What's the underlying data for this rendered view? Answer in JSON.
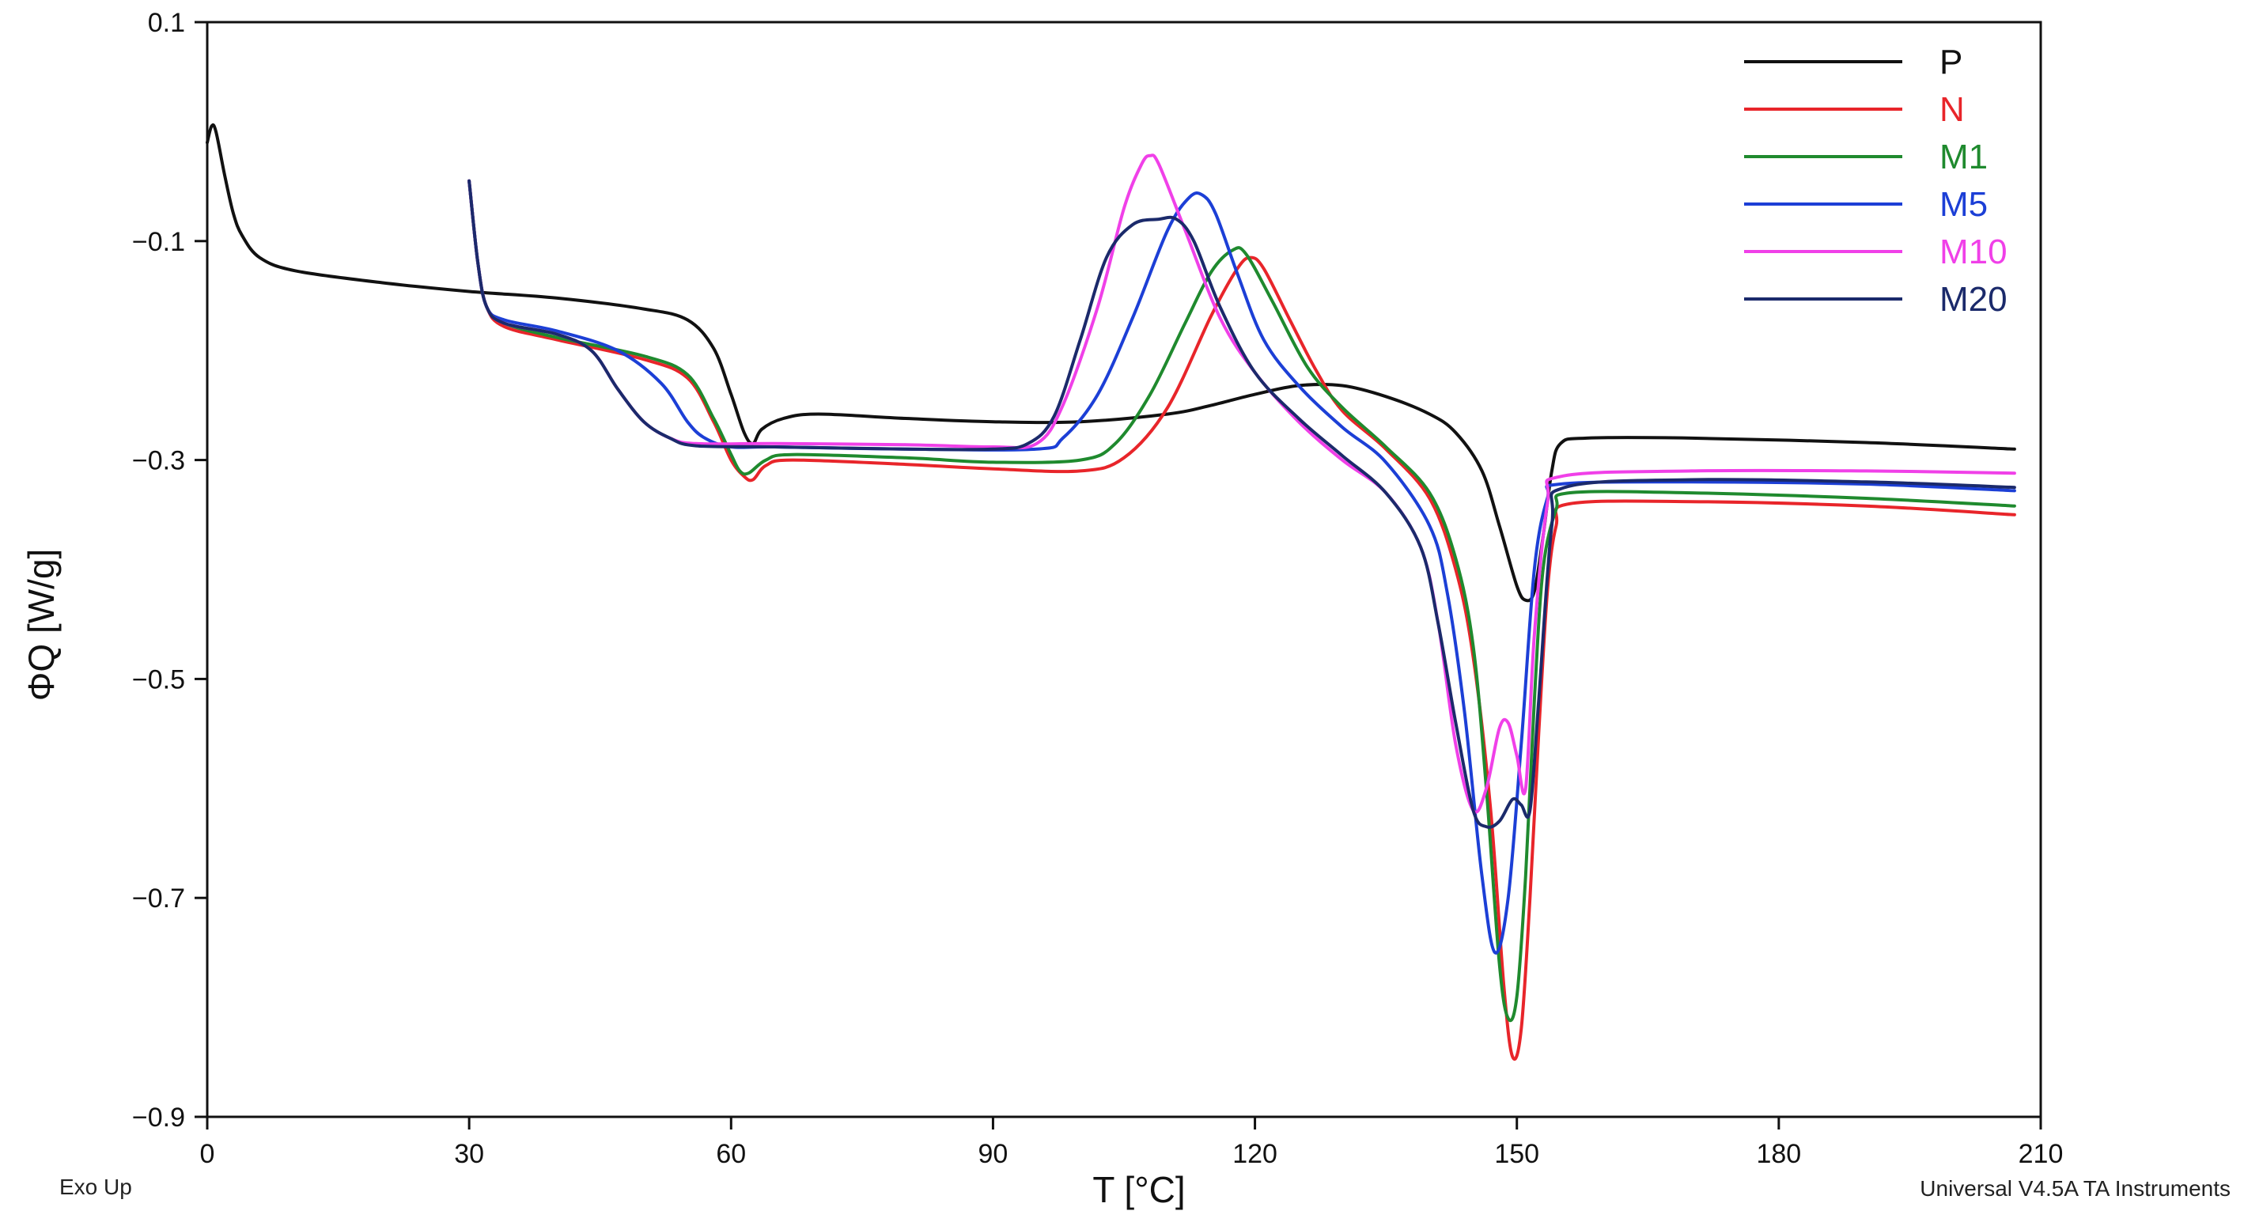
{
  "chart_data": {
    "type": "line",
    "title": "",
    "xlabel": "T [°C]",
    "ylabel": "ΦQ [W/g]",
    "xlim": [
      0,
      210
    ],
    "ylim": [
      -0.9,
      0.1
    ],
    "x_ticks": [
      0,
      30,
      60,
      90,
      120,
      150,
      180,
      210
    ],
    "y_ticks": [
      0.1,
      -0.1,
      -0.3,
      -0.5,
      -0.7,
      -0.9
    ],
    "y_tick_labels": [
      "0.1",
      "−0.1",
      "−0.3",
      "−0.5",
      "−0.7",
      "−0.9"
    ],
    "grid": false,
    "legend_position": "top-right",
    "corner_left_note": "Exo Up",
    "corner_right_note": "Universal V4.5A TA Instruments",
    "series": [
      {
        "name": "P",
        "color": "#111111",
        "points": [
          [
            0,
            -0.01
          ],
          [
            0.5,
            0.005
          ],
          [
            1,
            0.0
          ],
          [
            2,
            -0.04
          ],
          [
            3,
            -0.075
          ],
          [
            4,
            -0.095
          ],
          [
            6,
            -0.115
          ],
          [
            10,
            -0.127
          ],
          [
            20,
            -0.138
          ],
          [
            30,
            -0.146
          ],
          [
            40,
            -0.152
          ],
          [
            50,
            -0.162
          ],
          [
            55,
            -0.172
          ],
          [
            58,
            -0.198
          ],
          [
            60,
            -0.24
          ],
          [
            61.5,
            -0.275
          ],
          [
            62.5,
            -0.285
          ],
          [
            63.5,
            -0.272
          ],
          [
            66,
            -0.262
          ],
          [
            70,
            -0.258
          ],
          [
            80,
            -0.262
          ],
          [
            90,
            -0.265
          ],
          [
            100,
            -0.265
          ],
          [
            110,
            -0.258
          ],
          [
            115,
            -0.25
          ],
          [
            120,
            -0.24
          ],
          [
            125,
            -0.232
          ],
          [
            130,
            -0.232
          ],
          [
            135,
            -0.242
          ],
          [
            140,
            -0.258
          ],
          [
            143,
            -0.275
          ],
          [
            146,
            -0.31
          ],
          [
            148,
            -0.36
          ],
          [
            150,
            -0.415
          ],
          [
            151,
            -0.428
          ],
          [
            152,
            -0.42
          ],
          [
            153,
            -0.37
          ],
          [
            154,
            -0.31
          ],
          [
            155,
            -0.285
          ],
          [
            158,
            -0.28
          ],
          [
            170,
            -0.28
          ],
          [
            190,
            -0.284
          ],
          [
            207,
            -0.29
          ]
        ]
      },
      {
        "name": "N",
        "color": "#e8252a",
        "points": [
          [
            30,
            -0.045
          ],
          [
            31,
            -0.12
          ],
          [
            32,
            -0.16
          ],
          [
            34,
            -0.178
          ],
          [
            40,
            -0.19
          ],
          [
            50,
            -0.208
          ],
          [
            55,
            -0.225
          ],
          [
            58,
            -0.265
          ],
          [
            60,
            -0.3
          ],
          [
            61.5,
            -0.315
          ],
          [
            62.5,
            -0.318
          ],
          [
            64,
            -0.305
          ],
          [
            67,
            -0.3
          ],
          [
            80,
            -0.304
          ],
          [
            90,
            -0.308
          ],
          [
            100,
            -0.31
          ],
          [
            105,
            -0.298
          ],
          [
            110,
            -0.252
          ],
          [
            115,
            -0.168
          ],
          [
            118,
            -0.125
          ],
          [
            119.5,
            -0.115
          ],
          [
            121,
            -0.125
          ],
          [
            124,
            -0.172
          ],
          [
            127,
            -0.218
          ],
          [
            130,
            -0.255
          ],
          [
            135,
            -0.29
          ],
          [
            140,
            -0.335
          ],
          [
            143,
            -0.4
          ],
          [
            145,
            -0.48
          ],
          [
            147,
            -0.62
          ],
          [
            148.5,
            -0.78
          ],
          [
            149.5,
            -0.845
          ],
          [
            150.5,
            -0.82
          ],
          [
            151.5,
            -0.7
          ],
          [
            152.5,
            -0.55
          ],
          [
            153.5,
            -0.42
          ],
          [
            154.5,
            -0.36
          ],
          [
            156,
            -0.34
          ],
          [
            170,
            -0.338
          ],
          [
            190,
            -0.342
          ],
          [
            207,
            -0.35
          ]
        ]
      },
      {
        "name": "M1",
        "color": "#1f8a2e",
        "points": [
          [
            30,
            -0.045
          ],
          [
            31,
            -0.12
          ],
          [
            32,
            -0.16
          ],
          [
            34,
            -0.175
          ],
          [
            40,
            -0.188
          ],
          [
            50,
            -0.205
          ],
          [
            55,
            -0.222
          ],
          [
            58,
            -0.262
          ],
          [
            60,
            -0.295
          ],
          [
            61,
            -0.31
          ],
          [
            62,
            -0.312
          ],
          [
            64,
            -0.3
          ],
          [
            67,
            -0.295
          ],
          [
            80,
            -0.298
          ],
          [
            90,
            -0.302
          ],
          [
            100,
            -0.3
          ],
          [
            104,
            -0.285
          ],
          [
            108,
            -0.24
          ],
          [
            112,
            -0.175
          ],
          [
            115,
            -0.128
          ],
          [
            117.5,
            -0.108
          ],
          [
            119,
            -0.112
          ],
          [
            122,
            -0.155
          ],
          [
            126,
            -0.215
          ],
          [
            130,
            -0.252
          ],
          [
            135,
            -0.288
          ],
          [
            140,
            -0.33
          ],
          [
            143,
            -0.39
          ],
          [
            145,
            -0.47
          ],
          [
            146.5,
            -0.6
          ],
          [
            148,
            -0.76
          ],
          [
            149,
            -0.81
          ],
          [
            150,
            -0.79
          ],
          [
            151,
            -0.68
          ],
          [
            152,
            -0.52
          ],
          [
            153,
            -0.4
          ],
          [
            154.5,
            -0.345
          ],
          [
            156,
            -0.33
          ],
          [
            170,
            -0.33
          ],
          [
            190,
            -0.335
          ],
          [
            207,
            -0.342
          ]
        ]
      },
      {
        "name": "M5",
        "color": "#1c3fd6",
        "points": [
          [
            30,
            -0.045
          ],
          [
            31,
            -0.12
          ],
          [
            32,
            -0.16
          ],
          [
            34,
            -0.172
          ],
          [
            40,
            -0.182
          ],
          [
            47,
            -0.2
          ],
          [
            52,
            -0.23
          ],
          [
            55,
            -0.265
          ],
          [
            57,
            -0.28
          ],
          [
            60,
            -0.288
          ],
          [
            65,
            -0.288
          ],
          [
            80,
            -0.29
          ],
          [
            95,
            -0.29
          ],
          [
            98,
            -0.28
          ],
          [
            102,
            -0.24
          ],
          [
            106,
            -0.17
          ],
          [
            110,
            -0.09
          ],
          [
            112.5,
            -0.06
          ],
          [
            114,
            -0.058
          ],
          [
            115.5,
            -0.075
          ],
          [
            118,
            -0.13
          ],
          [
            121,
            -0.19
          ],
          [
            125,
            -0.232
          ],
          [
            130,
            -0.27
          ],
          [
            135,
            -0.302
          ],
          [
            140,
            -0.36
          ],
          [
            142,
            -0.42
          ],
          [
            144,
            -0.53
          ],
          [
            146,
            -0.68
          ],
          [
            147.5,
            -0.75
          ],
          [
            149,
            -0.7
          ],
          [
            150.5,
            -0.56
          ],
          [
            152,
            -0.4
          ],
          [
            153.5,
            -0.335
          ],
          [
            155,
            -0.322
          ],
          [
            170,
            -0.32
          ],
          [
            190,
            -0.322
          ],
          [
            207,
            -0.328
          ]
        ]
      },
      {
        "name": "M10",
        "color": "#f040e8",
        "points": [
          [
            30,
            -0.045
          ],
          [
            31,
            -0.12
          ],
          [
            32,
            -0.16
          ],
          [
            34,
            -0.175
          ],
          [
            40,
            -0.185
          ],
          [
            44,
            -0.2
          ],
          [
            47,
            -0.235
          ],
          [
            50,
            -0.265
          ],
          [
            53,
            -0.28
          ],
          [
            56,
            -0.285
          ],
          [
            65,
            -0.285
          ],
          [
            80,
            -0.286
          ],
          [
            90,
            -0.288
          ],
          [
            95,
            -0.285
          ],
          [
            98,
            -0.25
          ],
          [
            102,
            -0.16
          ],
          [
            105,
            -0.07
          ],
          [
            107,
            -0.03
          ],
          [
            108,
            -0.022
          ],
          [
            109,
            -0.03
          ],
          [
            112,
            -0.09
          ],
          [
            116,
            -0.17
          ],
          [
            120,
            -0.22
          ],
          [
            125,
            -0.265
          ],
          [
            130,
            -0.3
          ],
          [
            135,
            -0.33
          ],
          [
            139,
            -0.38
          ],
          [
            141,
            -0.45
          ],
          [
            143,
            -0.56
          ],
          [
            145,
            -0.62
          ],
          [
            146.5,
            -0.6
          ],
          [
            148,
            -0.545
          ],
          [
            149,
            -0.54
          ],
          [
            150,
            -0.57
          ],
          [
            151,
            -0.6
          ],
          [
            152,
            -0.46
          ],
          [
            153.5,
            -0.34
          ],
          [
            155,
            -0.315
          ],
          [
            170,
            -0.31
          ],
          [
            190,
            -0.31
          ],
          [
            207,
            -0.312
          ]
        ]
      },
      {
        "name": "M20",
        "color": "#1b2a6b",
        "points": [
          [
            30,
            -0.045
          ],
          [
            31,
            -0.12
          ],
          [
            32,
            -0.16
          ],
          [
            34,
            -0.175
          ],
          [
            40,
            -0.185
          ],
          [
            44,
            -0.2
          ],
          [
            47,
            -0.235
          ],
          [
            50,
            -0.265
          ],
          [
            53,
            -0.28
          ],
          [
            56,
            -0.287
          ],
          [
            65,
            -0.288
          ],
          [
            80,
            -0.29
          ],
          [
            90,
            -0.29
          ],
          [
            94,
            -0.285
          ],
          [
            97,
            -0.26
          ],
          [
            100,
            -0.19
          ],
          [
            103,
            -0.115
          ],
          [
            106,
            -0.085
          ],
          [
            109,
            -0.08
          ],
          [
            111,
            -0.08
          ],
          [
            113,
            -0.1
          ],
          [
            116,
            -0.16
          ],
          [
            120,
            -0.22
          ],
          [
            125,
            -0.262
          ],
          [
            130,
            -0.296
          ],
          [
            135,
            -0.33
          ],
          [
            139,
            -0.38
          ],
          [
            141,
            -0.45
          ],
          [
            143,
            -0.54
          ],
          [
            145,
            -0.62
          ],
          [
            146.5,
            -0.635
          ],
          [
            148,
            -0.63
          ],
          [
            149.5,
            -0.61
          ],
          [
            150.5,
            -0.615
          ],
          [
            151.5,
            -0.62
          ],
          [
            152.5,
            -0.52
          ],
          [
            154,
            -0.36
          ],
          [
            155.5,
            -0.325
          ],
          [
            170,
            -0.318
          ],
          [
            190,
            -0.32
          ],
          [
            207,
            -0.325
          ]
        ]
      }
    ]
  }
}
